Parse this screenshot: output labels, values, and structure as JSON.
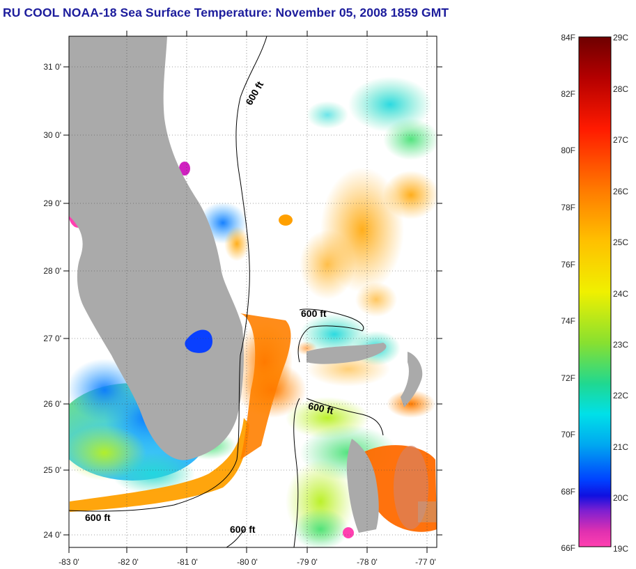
{
  "title": "RU COOL  NOAA-18  Sea Surface Temperature:  November 05, 2008 1859 GMT",
  "map": {
    "lat_labels": [
      "31 0'",
      "30 0'",
      "29 0'",
      "28 0'",
      "27 0'",
      "26 0'",
      "25 0'",
      "24 0'"
    ],
    "lon_labels": [
      "-83 0'",
      "-82 0'",
      "-81 0'",
      "-80 0'",
      "-79 0'",
      "-78 0'",
      "-77 0'"
    ],
    "contour_labels": [
      "600 ft",
      "600 ft",
      "600 ft",
      "600 ft",
      "600 ft"
    ],
    "land_color": "#aaaaaa"
  },
  "colorbar": {
    "fahrenheit": [
      "84F",
      "82F",
      "80F",
      "78F",
      "76F",
      "74F",
      "72F",
      "70F",
      "68F",
      "66F"
    ],
    "celsius": [
      "29C",
      "28C",
      "27C",
      "26C",
      "25C",
      "24C",
      "23C",
      "22C",
      "21C",
      "20C",
      "19C"
    ]
  }
}
